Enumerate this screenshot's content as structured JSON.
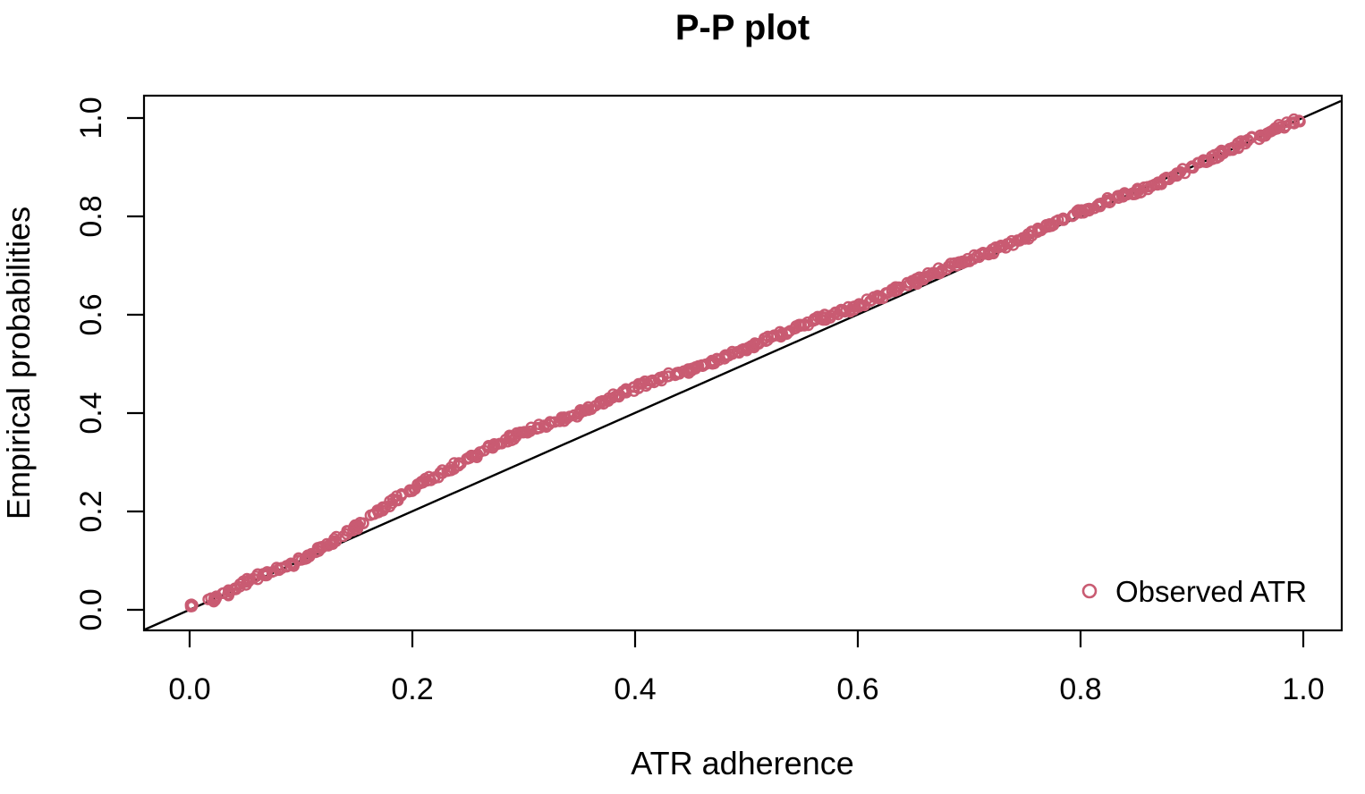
{
  "figure": {
    "title": "P-P plot"
  },
  "chart_data": {
    "type": "scatter",
    "title": "P-P plot",
    "xlabel": "ATR adherence",
    "ylabel": "Empirical probabilities",
    "xlim": [
      0,
      1
    ],
    "ylim": [
      0,
      1
    ],
    "grid": false,
    "x_tick_labels": [
      "0.0",
      "0.2",
      "0.4",
      "0.6",
      "0.8",
      "1.0"
    ],
    "y_tick_labels": [
      "0.0",
      "0.2",
      "0.4",
      "0.6",
      "0.8",
      "1.0"
    ],
    "x_tick_values": [
      0.0,
      0.2,
      0.4,
      0.6,
      0.8,
      1.0
    ],
    "y_tick_values": [
      0.0,
      0.2,
      0.4,
      0.6,
      0.8,
      1.0
    ],
    "reference_line": {
      "type": "identity",
      "equation": "y = x",
      "from": [
        0,
        0
      ],
      "to": [
        1,
        1
      ],
      "color": "#000000"
    },
    "legend": {
      "position": "bottom-right",
      "entries": [
        {
          "label": "Observed ATR",
          "marker": "open-circle",
          "color": "#C95B72"
        }
      ]
    },
    "series": [
      {
        "name": "Observed ATR",
        "marker": "open-circle",
        "color": "#C95B72",
        "n_points_approx": 640,
        "origin_cluster": {
          "x": 0.0,
          "y": 0.008,
          "count": 9
        },
        "curve_anchors": [
          [
            0.0,
            0.008
          ],
          [
            0.016,
            0.013
          ],
          [
            0.03,
            0.03
          ],
          [
            0.045,
            0.048
          ],
          [
            0.06,
            0.07
          ],
          [
            0.08,
            0.086
          ],
          [
            0.1,
            0.102
          ],
          [
            0.125,
            0.133
          ],
          [
            0.145,
            0.156
          ],
          [
            0.165,
            0.192
          ],
          [
            0.185,
            0.228
          ],
          [
            0.21,
            0.262
          ],
          [
            0.25,
            0.306
          ],
          [
            0.3,
            0.36
          ],
          [
            0.35,
            0.402
          ],
          [
            0.4,
            0.45
          ],
          [
            0.45,
            0.49
          ],
          [
            0.5,
            0.532
          ],
          [
            0.55,
            0.576
          ],
          [
            0.6,
            0.62
          ],
          [
            0.65,
            0.666
          ],
          [
            0.7,
            0.712
          ],
          [
            0.75,
            0.76
          ],
          [
            0.8,
            0.807
          ],
          [
            0.85,
            0.852
          ],
          [
            0.9,
            0.9
          ],
          [
            0.94,
            0.94
          ],
          [
            0.97,
            0.972
          ],
          [
            0.995,
            0.999
          ]
        ]
      }
    ]
  },
  "colors": {
    "points": "#C95B72",
    "axis": "#000000",
    "background": "#FFFFFF"
  }
}
